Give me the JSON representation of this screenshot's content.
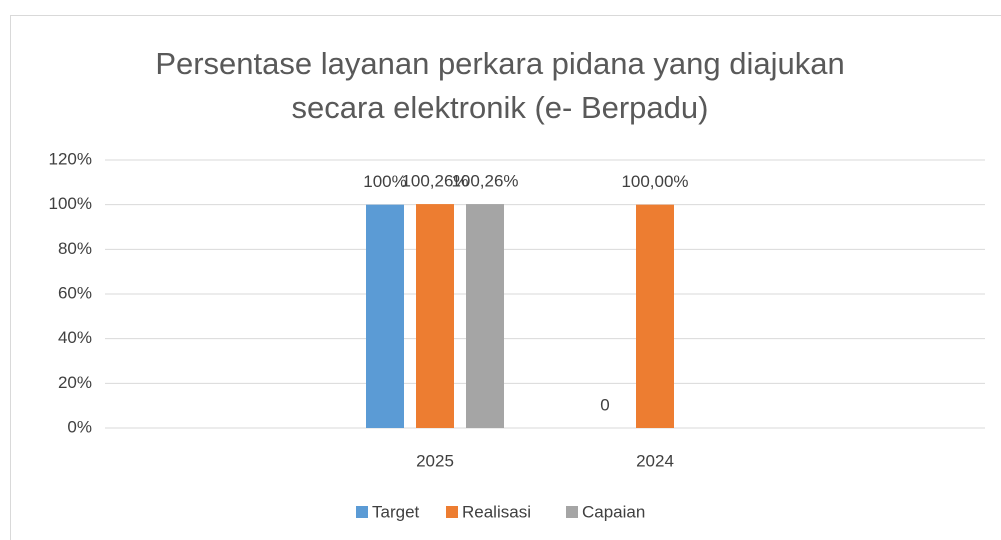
{
  "chart_data": {
    "type": "bar",
    "title": "Persentase layanan perkara pidana yang diajukan secara elektronik (e- Berpadu)",
    "categories": [
      null,
      "2025",
      "2024",
      null
    ],
    "series": [
      {
        "name": "Target",
        "color": "#5b9bd5",
        "values": [
          null,
          100,
          0,
          null
        ],
        "value_labels": [
          null,
          "100%",
          "0",
          null
        ]
      },
      {
        "name": "Realisasi",
        "color": "#ed7d31",
        "values": [
          null,
          100.26,
          100,
          null
        ],
        "value_labels": [
          null,
          "100,26%",
          "100,00%",
          null
        ]
      },
      {
        "name": "Capaian",
        "color": "#a5a5a5",
        "values": [
          null,
          100.26,
          null,
          null
        ],
        "value_labels": [
          null,
          "100,26%",
          null,
          null
        ]
      }
    ],
    "ylim": [
      0,
      120
    ],
    "yticks": [
      {
        "value": 0,
        "label": "0%"
      },
      {
        "value": 20,
        "label": "20%"
      },
      {
        "value": 40,
        "label": "40%"
      },
      {
        "value": 60,
        "label": "60%"
      },
      {
        "value": 80,
        "label": "80%"
      },
      {
        "value": 100,
        "label": "100%"
      },
      {
        "value": 120,
        "label": "120%"
      }
    ],
    "grid": true,
    "legend": "bottom"
  }
}
